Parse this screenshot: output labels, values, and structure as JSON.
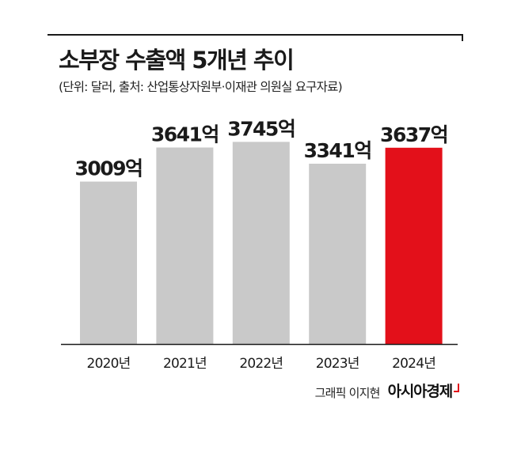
{
  "colors": {
    "bar_default": "#c9c9c9",
    "bar_highlight": "#e3101a",
    "text": "#1a1a1a",
    "baseline": "#1a1a1a"
  },
  "header": {
    "title": "소부장 수출액 5개년 추이",
    "subtitle": "(단위: 달러, 출처: 산업통상자원부·이재관 의원실 요구자료)"
  },
  "chart_data": {
    "type": "bar",
    "categories": [
      "2020년",
      "2021년",
      "2022년",
      "2023년",
      "2024년"
    ],
    "values": [
      3009,
      3641,
      3745,
      3341,
      3637
    ],
    "data_labels": [
      "3009억",
      "3641억",
      "3745억",
      "3341억",
      "3637억"
    ],
    "unit": "억",
    "highlight_index": 4,
    "ylim": [
      0,
      4200
    ],
    "grid": false,
    "legend": "none"
  },
  "footer": {
    "credit": "그래픽 이지현",
    "brand": "아시아경제",
    "brand_icon": "corner-mark-icon"
  }
}
